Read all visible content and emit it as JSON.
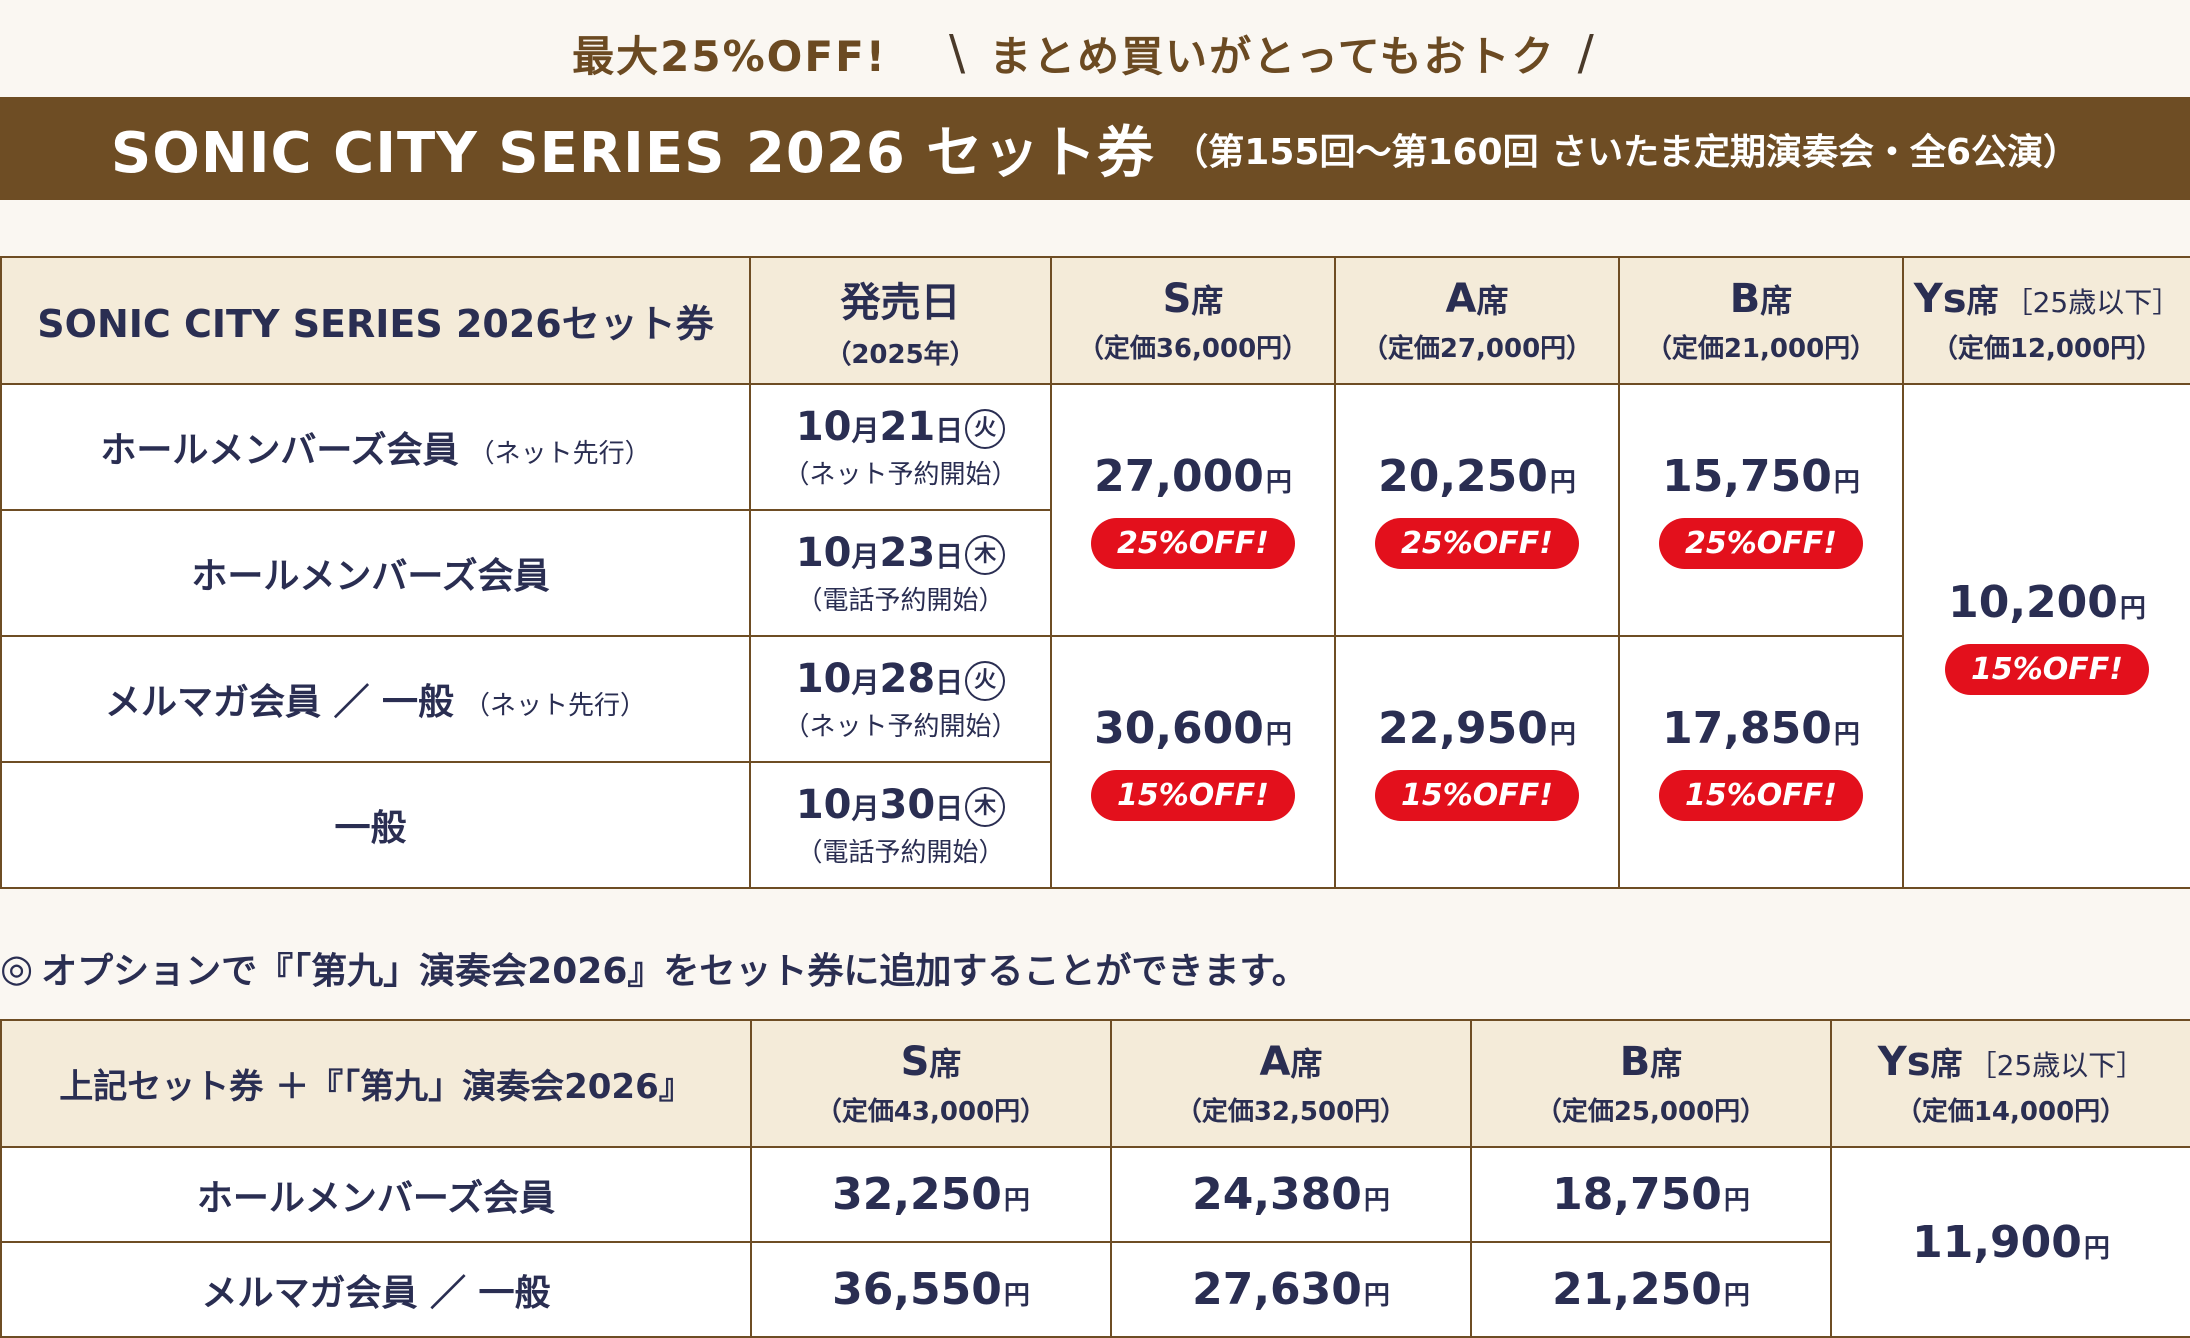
{
  "promo": {
    "discount": "最大25%OFF!",
    "slogan": "まとめ買いがとってもおトク"
  },
  "banner": {
    "title": "SONIC CITY SERIES 2026 セット券",
    "subtitle": "（第155回～第160回 さいたま定期演奏会・全6公演）"
  },
  "table1": {
    "corner": "SONIC CITY SERIES 2026セット券",
    "release_header": {
      "label": "発売日",
      "sub": "（2025年）"
    },
    "seats": [
      {
        "letter": "S",
        "label": "席",
        "bracket": "",
        "price": "（定価36,000円）"
      },
      {
        "letter": "A",
        "label": "席",
        "bracket": "",
        "price": "（定価27,000円）"
      },
      {
        "letter": "B",
        "label": "席",
        "bracket": "",
        "price": "（定価21,000円）"
      },
      {
        "letter": "Ys",
        "label": "席",
        "bracket": "［25歳以下］",
        "price": "（定価12,000円）"
      }
    ],
    "rows": [
      {
        "category": "ホールメンバーズ会員",
        "note": "（ネット先行）",
        "month": "10",
        "m": "月",
        "day": "21",
        "d": "日",
        "weekday": "火",
        "method": "（ネット予約開始）"
      },
      {
        "category": "ホールメンバーズ会員",
        "note": "",
        "month": "10",
        "m": "月",
        "day": "23",
        "d": "日",
        "weekday": "木",
        "method": "（電話予約開始）"
      },
      {
        "category": "メルマガ会員 ／ 一般",
        "note": "（ネット先行）",
        "month": "10",
        "m": "月",
        "day": "28",
        "d": "日",
        "weekday": "火",
        "method": "（ネット予約開始）"
      },
      {
        "category": "一般",
        "note": "",
        "month": "10",
        "m": "月",
        "day": "30",
        "d": "日",
        "weekday": "木",
        "method": "（電話予約開始）"
      }
    ],
    "member_prices": [
      {
        "value": "27,000",
        "yen": "円",
        "badge": "25%OFF!"
      },
      {
        "value": "20,250",
        "yen": "円",
        "badge": "25%OFF!"
      },
      {
        "value": "15,750",
        "yen": "円",
        "badge": "25%OFF!"
      }
    ],
    "general_prices": [
      {
        "value": "30,600",
        "yen": "円",
        "badge": "15%OFF!"
      },
      {
        "value": "22,950",
        "yen": "円",
        "badge": "15%OFF!"
      },
      {
        "value": "17,850",
        "yen": "円",
        "badge": "15%OFF!"
      }
    ],
    "ys_price": {
      "value": "10,200",
      "yen": "円",
      "badge": "15%OFF!"
    }
  },
  "option_note": {
    "mark": "◎",
    "text": "オプションで『「第九」演奏会2026』をセット券に追加することができます。"
  },
  "table2": {
    "corner": "上記セット券 ＋『「第九」演奏会2026』",
    "seats": [
      {
        "letter": "S",
        "label": "席",
        "bracket": "",
        "price": "（定価43,000円）"
      },
      {
        "letter": "A",
        "label": "席",
        "bracket": "",
        "price": "（定価32,500円）"
      },
      {
        "letter": "B",
        "label": "席",
        "bracket": "",
        "price": "（定価25,000円）"
      },
      {
        "letter": "Ys",
        "label": "席",
        "bracket": "［25歳以下］",
        "price": "（定価14,000円）"
      }
    ],
    "rows": [
      {
        "category": "ホールメンバーズ会員",
        "prices": [
          "32,250",
          "24,380",
          "18,750"
        ]
      },
      {
        "category": "メルマガ会員 ／ 一般",
        "prices": [
          "36,550",
          "27,630",
          "21,250"
        ]
      }
    ],
    "yen": "円",
    "ys_price": "11,900"
  },
  "colors": {
    "banner": "#6e4d24",
    "header_bg": "#f4ebd9",
    "badge": "#e3101c",
    "text": "#2a2e52"
  }
}
